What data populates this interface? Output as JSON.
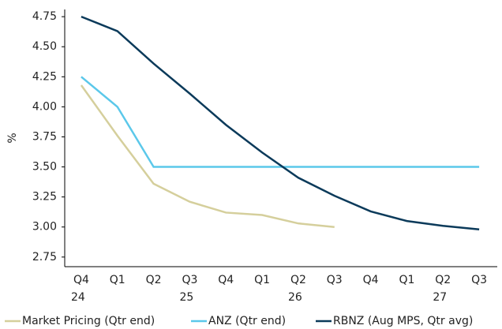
{
  "chart_data": {
    "type": "line",
    "y_label": "%",
    "categories": [
      "Q4",
      "Q1",
      "Q2",
      "Q3",
      "Q4",
      "Q1",
      "Q2",
      "Q3",
      "Q4",
      "Q1",
      "Q2",
      "Q3"
    ],
    "years": [
      "24",
      null,
      null,
      "25",
      null,
      null,
      "26",
      null,
      null,
      null,
      "27",
      null
    ],
    "series": [
      {
        "name": "Market Pricing (Qtr end)",
        "color": "#d5cf9c",
        "values": [
          4.18,
          3.76,
          3.36,
          3.21,
          3.12,
          3.1,
          3.03,
          3.0,
          null,
          null,
          null,
          null
        ]
      },
      {
        "name": "ANZ (Qtr end)",
        "color": "#5bc8ea",
        "values": [
          4.25,
          4.0,
          3.5,
          3.5,
          3.5,
          3.5,
          3.5,
          3.5,
          3.5,
          3.5,
          3.5,
          3.5
        ]
      },
      {
        "name": "RBNZ (Aug MPS, Qtr avg)",
        "color": "#0b3a5a",
        "values": [
          4.75,
          4.63,
          4.36,
          4.11,
          3.85,
          3.62,
          3.41,
          3.26,
          3.13,
          3.05,
          3.01,
          2.98
        ]
      }
    ],
    "ylim": [
      2.67,
      4.81
    ],
    "yticks": [
      2.75,
      {
        "value": 3.0,
        "label": "3.00"
      },
      3.25,
      {
        "value": 3.5,
        "label": "3.50"
      },
      3.75,
      {
        "value": 4.0,
        "label": "4.00"
      },
      4.25,
      {
        "value": 4.5,
        "label": "4.50"
      },
      4.75
    ]
  }
}
